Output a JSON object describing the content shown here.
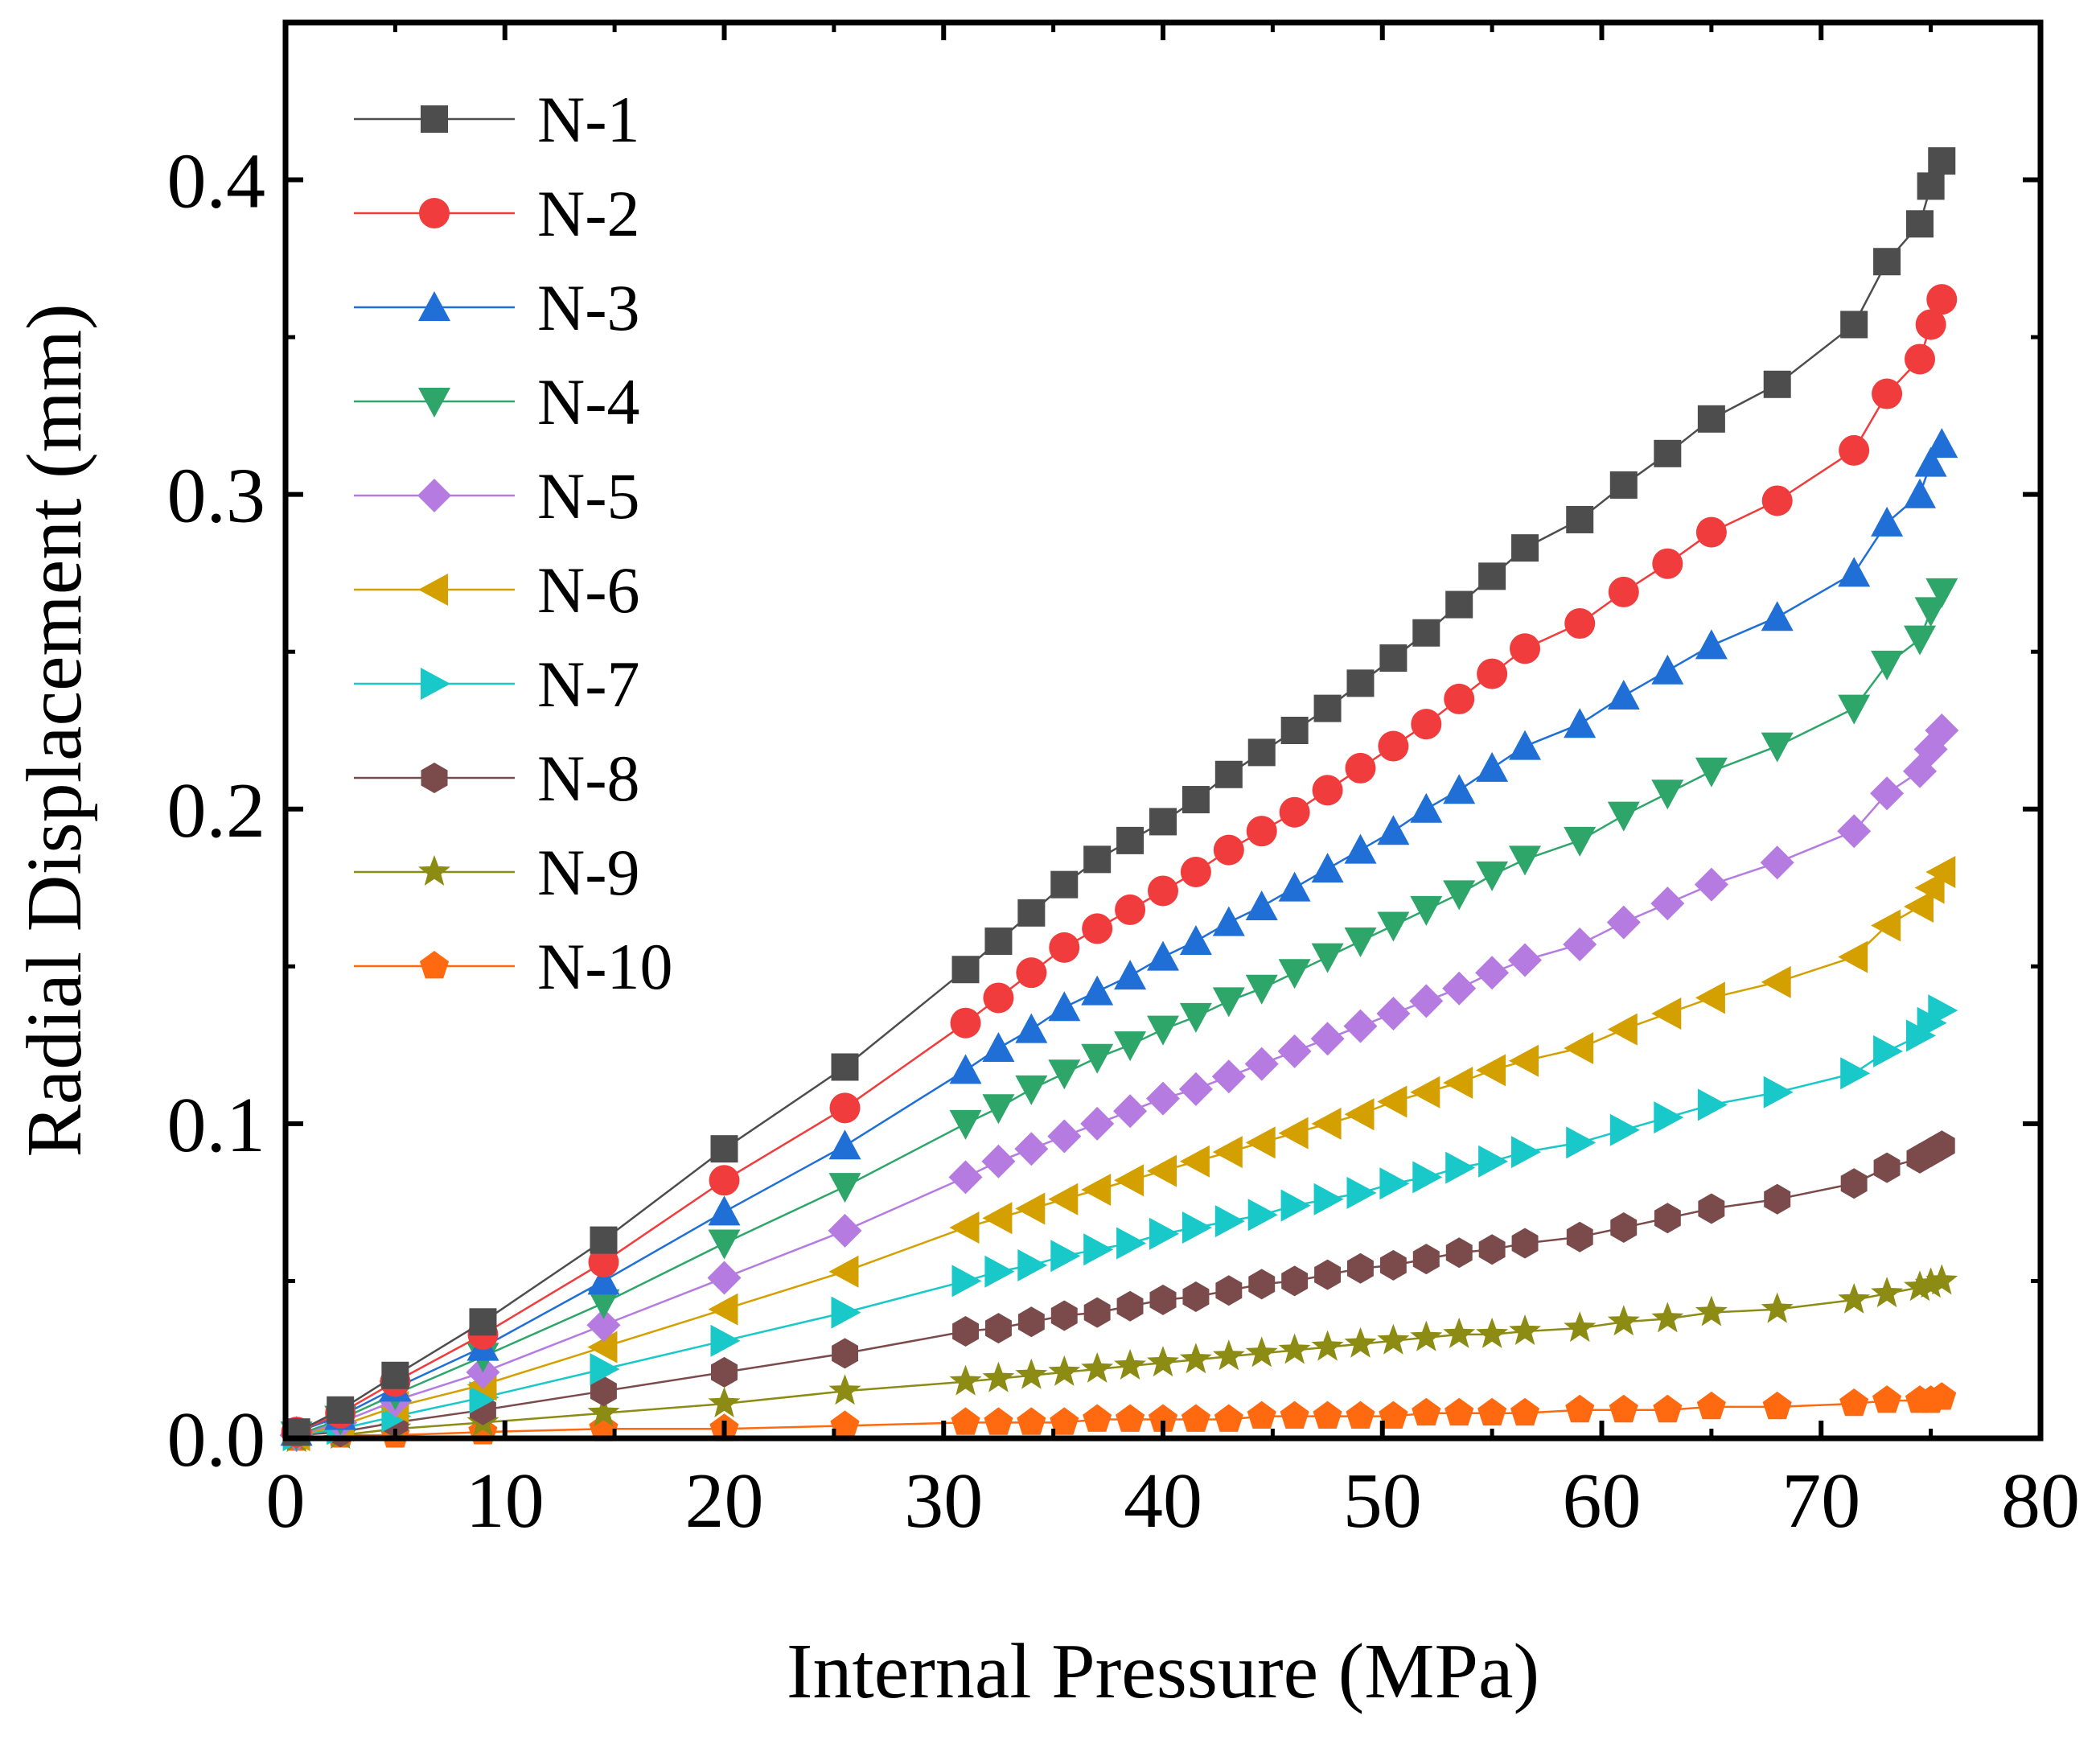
{
  "chart_data": {
    "type": "line",
    "title": "",
    "xlabel": "Internal Pressure (MPa)",
    "ylabel": "Radial Displacement (mm)",
    "xlim": [
      0,
      80
    ],
    "ylim": [
      0,
      0.45
    ],
    "x_ticks": [
      "0",
      "10",
      "20",
      "30",
      "40",
      "50",
      "60",
      "70",
      "80"
    ],
    "y_ticks": [
      "0.0",
      "0.1",
      "0.2",
      "0.3",
      "0.4"
    ],
    "grid": false,
    "legend_position": "top-left",
    "x": [
      0.5,
      2.5,
      5,
      9,
      14.5,
      20,
      25.5,
      31,
      32.5,
      34,
      35.5,
      37,
      38.5,
      40,
      41.5,
      43,
      44.5,
      46,
      47.5,
      49,
      50.5,
      52,
      53.5,
      55,
      56.5,
      59,
      61,
      63,
      65,
      68,
      71.5,
      73,
      74.5,
      75,
      75.5
    ],
    "series": [
      {
        "name": "N-1",
        "color": "#4d4d4d",
        "marker": "square",
        "values": [
          0.002,
          0.009,
          0.02,
          0.037,
          0.063,
          0.092,
          0.118,
          0.149,
          0.158,
          0.167,
          0.176,
          0.184,
          0.19,
          0.196,
          0.203,
          0.211,
          0.218,
          0.225,
          0.232,
          0.24,
          0.248,
          0.256,
          0.265,
          0.274,
          0.283,
          0.292,
          0.303,
          0.313,
          0.324,
          0.335,
          0.354,
          0.374,
          0.386,
          0.398,
          0.406
        ]
      },
      {
        "name": "N-2",
        "color": "#f03c3c",
        "marker": "circle",
        "values": [
          0.002,
          0.008,
          0.018,
          0.033,
          0.056,
          0.082,
          0.105,
          0.132,
          0.14,
          0.148,
          0.156,
          0.162,
          0.168,
          0.174,
          0.18,
          0.187,
          0.193,
          0.199,
          0.206,
          0.213,
          0.22,
          0.227,
          0.235,
          0.243,
          0.251,
          0.259,
          0.269,
          0.278,
          0.288,
          0.298,
          0.314,
          0.332,
          0.343,
          0.354,
          0.362
        ]
      },
      {
        "name": "N-3",
        "color": "#1f6fd6",
        "marker": "triangle-up",
        "values": [
          0.002,
          0.007,
          0.016,
          0.029,
          0.05,
          0.072,
          0.093,
          0.117,
          0.124,
          0.13,
          0.137,
          0.142,
          0.147,
          0.153,
          0.158,
          0.164,
          0.169,
          0.175,
          0.181,
          0.187,
          0.193,
          0.2,
          0.206,
          0.213,
          0.22,
          0.227,
          0.236,
          0.244,
          0.252,
          0.261,
          0.275,
          0.291,
          0.3,
          0.31,
          0.316
        ]
      },
      {
        "name": "N-4",
        "color": "#2ea66a",
        "marker": "triangle-down",
        "values": [
          0.001,
          0.006,
          0.014,
          0.026,
          0.043,
          0.062,
          0.08,
          0.1,
          0.105,
          0.111,
          0.116,
          0.121,
          0.125,
          0.13,
          0.134,
          0.139,
          0.143,
          0.148,
          0.153,
          0.158,
          0.163,
          0.168,
          0.173,
          0.179,
          0.184,
          0.19,
          0.198,
          0.205,
          0.212,
          0.22,
          0.232,
          0.246,
          0.254,
          0.263,
          0.269
        ]
      },
      {
        "name": "N-5",
        "color": "#b57be0",
        "marker": "diamond",
        "values": [
          0.001,
          0.005,
          0.012,
          0.021,
          0.036,
          0.051,
          0.066,
          0.083,
          0.088,
          0.092,
          0.096,
          0.1,
          0.104,
          0.108,
          0.111,
          0.115,
          0.119,
          0.123,
          0.127,
          0.131,
          0.135,
          0.139,
          0.143,
          0.148,
          0.152,
          0.157,
          0.164,
          0.17,
          0.176,
          0.183,
          0.193,
          0.205,
          0.212,
          0.219,
          0.225
        ]
      },
      {
        "name": "N-6",
        "color": "#d4a000",
        "marker": "triangle-left",
        "values": [
          0.001,
          0.004,
          0.01,
          0.017,
          0.029,
          0.041,
          0.053,
          0.067,
          0.07,
          0.073,
          0.076,
          0.079,
          0.082,
          0.085,
          0.088,
          0.091,
          0.094,
          0.097,
          0.1,
          0.103,
          0.107,
          0.11,
          0.113,
          0.117,
          0.12,
          0.124,
          0.13,
          0.135,
          0.14,
          0.145,
          0.153,
          0.163,
          0.169,
          0.175,
          0.18
        ]
      },
      {
        "name": "N-7",
        "color": "#19c8c8",
        "marker": "triangle-right",
        "values": [
          0.001,
          0.003,
          0.007,
          0.013,
          0.022,
          0.031,
          0.04,
          0.05,
          0.053,
          0.055,
          0.058,
          0.06,
          0.062,
          0.065,
          0.067,
          0.069,
          0.071,
          0.074,
          0.076,
          0.078,
          0.081,
          0.083,
          0.086,
          0.088,
          0.091,
          0.094,
          0.098,
          0.102,
          0.106,
          0.11,
          0.116,
          0.123,
          0.128,
          0.132,
          0.136
        ]
      },
      {
        "name": "N-8",
        "color": "#7b4a4a",
        "marker": "hexagon",
        "values": [
          0.001,
          0.002,
          0.005,
          0.009,
          0.015,
          0.021,
          0.027,
          0.034,
          0.035,
          0.037,
          0.039,
          0.04,
          0.042,
          0.044,
          0.045,
          0.047,
          0.049,
          0.05,
          0.052,
          0.054,
          0.055,
          0.057,
          0.059,
          0.06,
          0.062,
          0.064,
          0.067,
          0.07,
          0.073,
          0.076,
          0.081,
          0.086,
          0.089,
          0.091,
          0.093
        ]
      },
      {
        "name": "N-9",
        "color": "#8c8c14",
        "marker": "star",
        "values": [
          0.0,
          0.001,
          0.003,
          0.005,
          0.008,
          0.011,
          0.015,
          0.018,
          0.019,
          0.02,
          0.021,
          0.022,
          0.023,
          0.024,
          0.025,
          0.026,
          0.027,
          0.028,
          0.029,
          0.03,
          0.031,
          0.032,
          0.033,
          0.033,
          0.034,
          0.035,
          0.037,
          0.038,
          0.04,
          0.041,
          0.044,
          0.046,
          0.048,
          0.049,
          0.05
        ]
      },
      {
        "name": "N-10",
        "color": "#ff6a10",
        "marker": "pentagon",
        "values": [
          0.0,
          0.001,
          0.001,
          0.002,
          0.003,
          0.003,
          0.004,
          0.005,
          0.005,
          0.005,
          0.005,
          0.006,
          0.006,
          0.006,
          0.006,
          0.006,
          0.007,
          0.007,
          0.007,
          0.007,
          0.007,
          0.008,
          0.008,
          0.008,
          0.008,
          0.009,
          0.009,
          0.009,
          0.01,
          0.01,
          0.011,
          0.012,
          0.012,
          0.012,
          0.013
        ]
      }
    ]
  }
}
